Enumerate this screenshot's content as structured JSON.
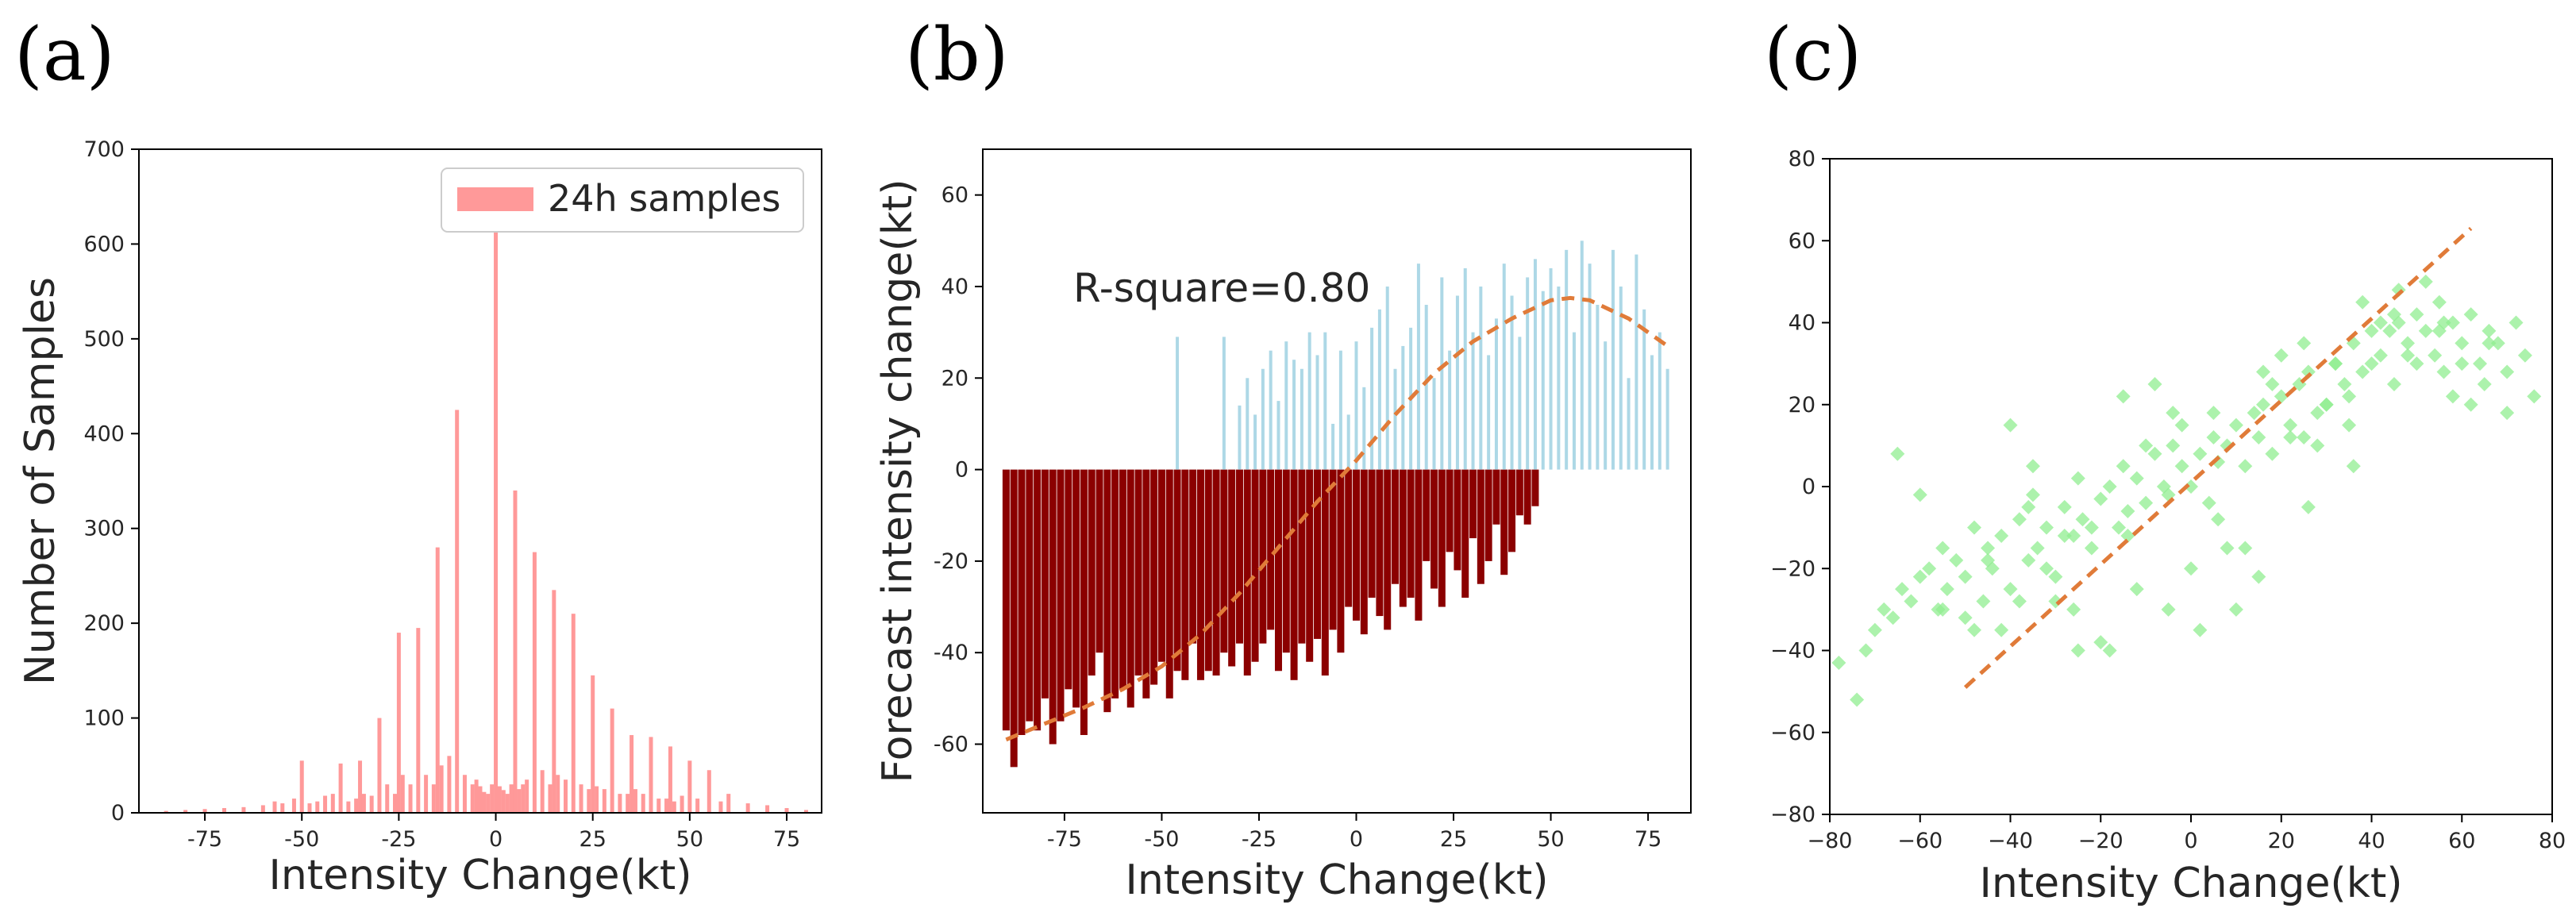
{
  "chart_data": [
    {
      "id": "a",
      "panel_label": "(a)",
      "type": "bar",
      "xlabel": "Intensity Change(kt)",
      "ylabel": "Number of Samples",
      "xlim": [
        -92,
        84
      ],
      "ylim": [
        0,
        700
      ],
      "xticks": [
        -75,
        -50,
        -25,
        0,
        25,
        50,
        75
      ],
      "yticks": [
        0,
        100,
        200,
        300,
        400,
        500,
        600,
        700
      ],
      "legend": {
        "label": "24h samples",
        "position": "top-right"
      },
      "bar_color": "#ff9999",
      "x": [
        -85,
        -80,
        -75,
        -70,
        -65,
        -60,
        -57,
        -55,
        -52,
        -50,
        -48,
        -46,
        -44,
        -42,
        -40,
        -38,
        -36,
        -35,
        -34,
        -32,
        -30,
        -28,
        -26,
        -25,
        -24,
        -22,
        -20,
        -18,
        -16,
        -15,
        -14,
        -12,
        -10,
        -8,
        -6,
        -5,
        -4,
        -3,
        -2,
        -1,
        0,
        1,
        2,
        3,
        4,
        5,
        6,
        7,
        8,
        10,
        12,
        14,
        15,
        16,
        18,
        20,
        22,
        24,
        25,
        26,
        28,
        30,
        32,
        34,
        35,
        36,
        38,
        40,
        42,
        44,
        45,
        46,
        48,
        50,
        52,
        55,
        58,
        60,
        65,
        70,
        75,
        80
      ],
      "values": [
        2,
        3,
        4,
        5,
        6,
        8,
        12,
        10,
        15,
        55,
        10,
        12,
        18,
        20,
        52,
        12,
        15,
        55,
        20,
        18,
        100,
        30,
        20,
        190,
        40,
        30,
        195,
        40,
        30,
        280,
        50,
        60,
        425,
        40,
        30,
        35,
        28,
        22,
        20,
        30,
        625,
        28,
        24,
        20,
        30,
        340,
        25,
        30,
        35,
        275,
        45,
        30,
        235,
        40,
        35,
        210,
        30,
        25,
        145,
        28,
        25,
        110,
        20,
        20,
        82,
        25,
        20,
        80,
        15,
        15,
        70,
        12,
        18,
        55,
        15,
        45,
        12,
        20,
        10,
        8,
        5,
        3
      ]
    },
    {
      "id": "b",
      "panel_label": "(b)",
      "type": "bar",
      "xlabel": "Intensity Change(kt)",
      "ylabel": "Forecast intensity change(kt)",
      "xlim": [
        -96,
        86
      ],
      "ylim": [
        -75,
        70
      ],
      "xticks": [
        -75,
        -50,
        -25,
        0,
        25,
        50,
        75
      ],
      "yticks": [
        -60,
        -40,
        -20,
        0,
        20,
        40,
        60
      ],
      "annotation": "R-square=0.80",
      "fit_color": "#e07b39",
      "series": [
        {
          "name": "negative",
          "color": "#8b0000",
          "x": [
            -90,
            -88,
            -86,
            -84,
            -82,
            -80,
            -78,
            -76,
            -74,
            -72,
            -70,
            -68,
            -66,
            -64,
            -62,
            -60,
            -58,
            -56,
            -54,
            -52,
            -50,
            -48,
            -46,
            -44,
            -42,
            -40,
            -38,
            -36,
            -34,
            -32,
            -30,
            -28,
            -26,
            -24,
            -22,
            -20,
            -18,
            -16,
            -14,
            -12,
            -10,
            -8,
            -6,
            -4,
            -2,
            0,
            2,
            4,
            6,
            8,
            10,
            12,
            14,
            16,
            18,
            20,
            22,
            24,
            26,
            28,
            30,
            32,
            34,
            36,
            38,
            40,
            42,
            44,
            46
          ],
          "values": [
            -57,
            -65,
            -58,
            -55,
            -57,
            -50,
            -60,
            -55,
            -48,
            -52,
            -58,
            -45,
            -40,
            -53,
            -50,
            -48,
            -52,
            -45,
            -50,
            -47,
            -42,
            -50,
            -44,
            -46,
            -38,
            -46,
            -44,
            -45,
            -40,
            -43,
            -38,
            -45,
            -42,
            -38,
            -35,
            -44,
            -40,
            -46,
            -38,
            -42,
            -37,
            -45,
            -35,
            -40,
            -30,
            -33,
            -36,
            -28,
            -32,
            -35,
            -25,
            -30,
            -28,
            -33,
            -20,
            -26,
            -30,
            -18,
            -22,
            -28,
            -15,
            -25,
            -20,
            -12,
            -23,
            -18,
            -10,
            -12,
            -8
          ]
        },
        {
          "name": "positive",
          "color": "#add8e6",
          "x": [
            -46,
            -34,
            -30,
            -28,
            -26,
            -24,
            -22,
            -20,
            -18,
            -16,
            -14,
            -12,
            -10,
            -8,
            -6,
            -4,
            -2,
            0,
            2,
            4,
            6,
            8,
            10,
            12,
            14,
            16,
            18,
            20,
            22,
            24,
            26,
            28,
            30,
            32,
            34,
            36,
            38,
            40,
            42,
            44,
            46,
            48,
            50,
            52,
            54,
            56,
            58,
            60,
            62,
            64,
            66,
            68,
            70,
            72,
            74,
            76,
            78,
            80
          ],
          "values": [
            29,
            29,
            14,
            20,
            12,
            22,
            26,
            15,
            28,
            24,
            22,
            30,
            25,
            30,
            10,
            26,
            12,
            28,
            18,
            31,
            35,
            40,
            22,
            27,
            31,
            45,
            36,
            20,
            42,
            26,
            38,
            44,
            30,
            40,
            25,
            33,
            45,
            38,
            29,
            42,
            46,
            39,
            44,
            40,
            48,
            30,
            50,
            45,
            36,
            28,
            48,
            40,
            20,
            47,
            35,
            25,
            30,
            22
          ]
        }
      ],
      "fit_curve": {
        "x": [
          -90,
          -80,
          -70,
          -60,
          -50,
          -40,
          -30,
          -20,
          -10,
          0,
          10,
          20,
          30,
          40,
          50,
          55,
          60,
          70,
          80
        ],
        "y": [
          -59,
          -55.5,
          -52,
          -48,
          -43,
          -36,
          -27,
          -17,
          -7,
          2,
          12,
          21,
          28,
          33,
          37,
          37.5,
          37,
          33,
          27
        ]
      }
    },
    {
      "id": "c",
      "panel_label": "(c)",
      "type": "scatter",
      "xlabel": "Intensity Change(kt)",
      "ylabel": "",
      "xlim": [
        -80,
        80
      ],
      "ylim": [
        -80,
        80
      ],
      "xticks": [
        -80,
        -60,
        -40,
        -20,
        0,
        20,
        40,
        60,
        80
      ],
      "yticks": [
        -80,
        -60,
        -40,
        -20,
        0,
        20,
        40,
        60,
        80
      ],
      "marker": "diamond",
      "marker_color": "#90ee90",
      "line_color": "#e07b39",
      "line": {
        "x": [
          -50,
          62
        ],
        "y": [
          -49,
          63
        ]
      },
      "points_x": [
        -78,
        -74,
        -72,
        -70,
        -68,
        -66,
        -64,
        -62,
        -60,
        -58,
        -56,
        -55,
        -54,
        -52,
        -50,
        -48,
        -46,
        -45,
        -44,
        -42,
        -40,
        -38,
        -36,
        -35,
        -34,
        -32,
        -30,
        -28,
        -26,
        -25,
        -24,
        -22,
        -20,
        -18,
        -16,
        -15,
        -14,
        -12,
        -10,
        -8,
        -6,
        -5,
        -4,
        -2,
        0,
        2,
        4,
        5,
        6,
        8,
        10,
        12,
        14,
        15,
        16,
        18,
        20,
        22,
        24,
        25,
        26,
        28,
        30,
        32,
        34,
        35,
        36,
        38,
        40,
        42,
        44,
        45,
        46,
        48,
        50,
        52,
        54,
        55,
        56,
        58,
        60,
        62,
        64,
        65,
        66,
        68,
        70,
        72,
        74,
        76,
        -60,
        -50,
        -40,
        -30,
        -20,
        -10,
        0,
        10,
        20,
        30,
        40,
        50,
        60,
        -65,
        -38,
        -28,
        -18,
        -8,
        2,
        12,
        22,
        32,
        42,
        52,
        62,
        -45,
        -35,
        -25,
        -15,
        -5,
        5,
        15,
        25,
        35,
        45,
        55,
        -55,
        -42,
        -32,
        -22,
        -12,
        -2,
        8,
        18,
        28,
        38,
        48,
        58,
        70,
        -48,
        -36,
        -26,
        -14,
        -4,
        6,
        16,
        26,
        36,
        46,
        56,
        66
      ],
      "points_y": [
        -43,
        -52,
        -40,
        -35,
        -30,
        -32,
        -25,
        -28,
        -22,
        -20,
        -30,
        -15,
        -25,
        -18,
        -22,
        -10,
        -28,
        -15,
        -20,
        -12,
        -25,
        -8,
        -18,
        -2,
        -15,
        -10,
        -22,
        -5,
        -12,
        2,
        -8,
        -15,
        -3,
        0,
        -10,
        5,
        -6,
        2,
        -4,
        8,
        0,
        -2,
        10,
        5,
        0,
        8,
        -4,
        12,
        6,
        10,
        15,
        5,
        18,
        12,
        20,
        8,
        22,
        15,
        25,
        12,
        28,
        18,
        20,
        30,
        25,
        22,
        35,
        28,
        30,
        32,
        38,
        25,
        40,
        35,
        30,
        38,
        32,
        45,
        28,
        40,
        35,
        42,
        30,
        25,
        38,
        35,
        28,
        40,
        32,
        22,
        -2,
        -32,
        15,
        -28,
        -38,
        10,
        -20,
        -30,
        32,
        20,
        38,
        42,
        30,
        8,
        -28,
        -12,
        -40,
        25,
        -35,
        -15,
        12,
        30,
        40,
        50,
        20,
        -18,
        5,
        -40,
        22,
        -30,
        18,
        -22,
        35,
        15,
        42,
        38,
        -30,
        -35,
        -20,
        -10,
        -25,
        15,
        -15,
        25,
        10,
        45,
        32,
        22,
        18,
        -35,
        -5,
        -30,
        -12,
        18,
        -8,
        28,
        -5,
        5,
        48,
        40,
        35
      ]
    }
  ]
}
